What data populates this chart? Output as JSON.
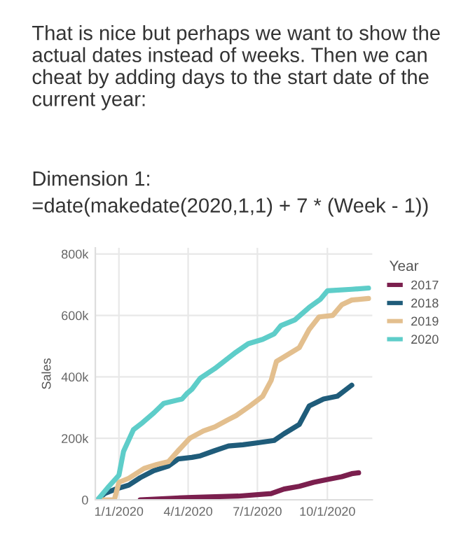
{
  "chart_data": {
    "type": "line",
    "title": "That is nice but perhaps we want to show the actual dates instead of weeks. Then we can cheat by adding days to the start date of the current year:",
    "annotations": [
      "Dimension 1:",
      "=date(makedate(2020,1,1) + 7 * (Week - 1))"
    ],
    "ylabel": "Sales",
    "legend_title": "Year",
    "legend": "right",
    "grid": true,
    "marker": "none",
    "line_style": "solid",
    "xlim": [
      "2019-12-01",
      "2020-11-29"
    ],
    "xticks": [
      {
        "value": "2020-01-01",
        "label": "1/1/2020"
      },
      {
        "value": "2020-04-01",
        "label": "4/1/2020"
      },
      {
        "value": "2020-07-01",
        "label": "7/1/2020"
      },
      {
        "value": "2020-10-01",
        "label": "10/1/2020"
      }
    ],
    "ylim": [
      0,
      820000
    ],
    "yticks": [
      {
        "value": 0,
        "label": "0"
      },
      {
        "value": 200000,
        "label": "200k"
      },
      {
        "value": 400000,
        "label": "400k"
      },
      {
        "value": 600000,
        "label": "600k"
      },
      {
        "value": 800000,
        "label": "800k"
      }
    ],
    "series": [
      {
        "name": "2017",
        "color": "#7b1f4e",
        "x": [
          "2020-01-29",
          "2020-04-06",
          "2020-06-06",
          "2020-07-19",
          "2020-08-05",
          "2020-08-25",
          "2020-09-13",
          "2020-10-01",
          "2020-10-20",
          "2020-11-02",
          "2020-11-11"
        ],
        "values": [
          0,
          8000,
          12000,
          20000,
          35000,
          44000,
          57000,
          66000,
          75000,
          85000,
          88000
        ]
      },
      {
        "name": "2018",
        "color": "#1f5c7a",
        "x": [
          "2019-12-04",
          "2019-12-13",
          "2019-12-28",
          "2020-01-14",
          "2020-01-29",
          "2020-02-16",
          "2020-03-06",
          "2020-03-19",
          "2020-04-06",
          "2020-04-17",
          "2020-05-06",
          "2020-05-24",
          "2020-06-12",
          "2020-06-30",
          "2020-07-23",
          "2020-08-05",
          "2020-08-25",
          "2020-09-07",
          "2020-09-26",
          "2020-10-14",
          "2020-11-02"
        ],
        "values": [
          0,
          20000,
          35000,
          48000,
          72000,
          95000,
          110000,
          133000,
          138000,
          143000,
          160000,
          175000,
          179000,
          185000,
          193000,
          215000,
          245000,
          305000,
          328000,
          337000,
          373000
        ]
      },
      {
        "name": "2019",
        "color": "#e3bf8e",
        "x": [
          "2019-12-10",
          "2019-12-26",
          "2020-01-01",
          "2020-01-14",
          "2020-02-03",
          "2020-02-20",
          "2020-03-06",
          "2020-03-19",
          "2020-04-03",
          "2020-04-21",
          "2020-05-06",
          "2020-05-23",
          "2020-06-03",
          "2020-06-21",
          "2020-07-08",
          "2020-07-19",
          "2020-07-26",
          "2020-08-25",
          "2020-09-07",
          "2020-09-20",
          "2020-10-08",
          "2020-10-20",
          "2020-11-02",
          "2020-11-24"
        ],
        "values": [
          0,
          0,
          57000,
          70000,
          102000,
          115000,
          124000,
          160000,
          200000,
          224000,
          237000,
          260000,
          274000,
          305000,
          337000,
          388000,
          450000,
          495000,
          554000,
          595000,
          600000,
          635000,
          650000,
          655000
        ]
      },
      {
        "name": "2020",
        "color": "#5ecdc9",
        "x": [
          "2019-12-04",
          "2019-12-19",
          "2020-01-01",
          "2020-01-07",
          "2020-01-20",
          "2020-02-01",
          "2020-02-16",
          "2020-02-29",
          "2020-03-24",
          "2020-03-30",
          "2020-04-06",
          "2020-04-17",
          "2020-05-06",
          "2020-06-01",
          "2020-06-19",
          "2020-07-08",
          "2020-07-23",
          "2020-08-01",
          "2020-08-19",
          "2020-09-07",
          "2020-09-22",
          "2020-10-01",
          "2020-11-02",
          "2020-11-24"
        ],
        "values": [
          0,
          44000,
          80000,
          157000,
          228000,
          251000,
          283000,
          314000,
          328000,
          345000,
          360000,
          396000,
          427000,
          477000,
          508000,
          522000,
          540000,
          567000,
          585000,
          626000,
          653000,
          680000,
          685000,
          689000
        ]
      }
    ]
  }
}
